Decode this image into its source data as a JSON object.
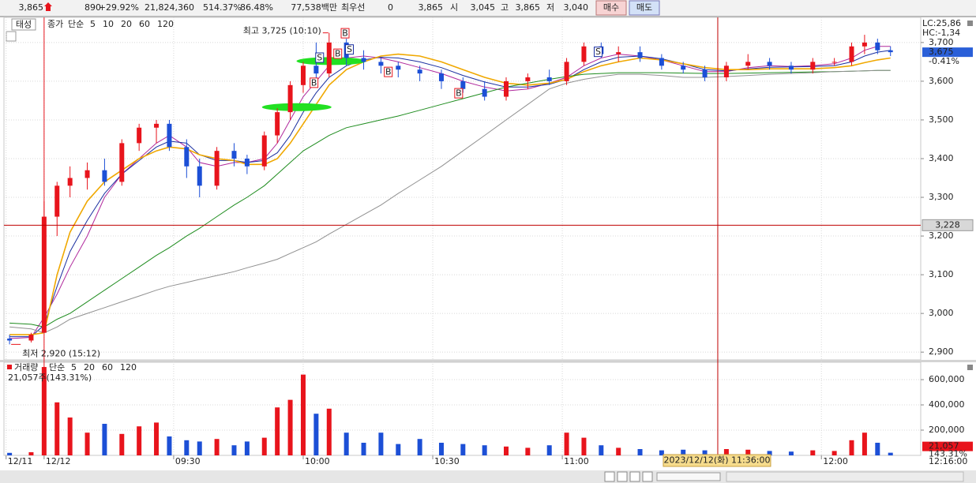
{
  "top": {
    "price": "3,865",
    "change": "890",
    "change_pct": "+29.92%",
    "volume": "21,824,360",
    "vol_ratio": "514.37%",
    "turnover_ratio": "86.48%",
    "amount": "77,538백만",
    "best_label": "최우선",
    "best_value": "0",
    "quote": "3,865",
    "open_label": "시",
    "open": "3,045",
    "high_label": "고",
    "high": "3,865",
    "low_label": "저",
    "low": "3,040",
    "buy": "매수",
    "sell": "매도"
  },
  "chart_data": [
    {
      "type": "candlestick",
      "name": "태성",
      "legend_prefix": "종가",
      "ma_label": "단순",
      "up_color": "#e8141c",
      "down_color": "#1c4fd6",
      "x": [
        -8,
        -3,
        0,
        3,
        6,
        10,
        14,
        18,
        22,
        26,
        29,
        33,
        36,
        40,
        44,
        47,
        51,
        54,
        57,
        60,
        63,
        66,
        70,
        74,
        78,
        82,
        87,
        92,
        97,
        102,
        107,
        112,
        117,
        121,
        125,
        129,
        133,
        138,
        143,
        148,
        153,
        158,
        163,
        168,
        173,
        178,
        183,
        187,
        190,
        193,
        196
      ],
      "open": [
        2935,
        2930,
        2950,
        3250,
        3330,
        3350,
        3370,
        3340,
        3440,
        3480,
        3490,
        3430,
        3380,
        3330,
        3420,
        3400,
        3380,
        3460,
        3520,
        3590,
        3640,
        3620,
        3700,
        3660,
        3650,
        3640,
        3630,
        3620,
        3600,
        3580,
        3560,
        3600,
        3610,
        3600,
        3650,
        3690,
        3670,
        3675,
        3660,
        3640,
        3630,
        3610,
        3640,
        3650,
        3640,
        3630,
        3650,
        3650,
        3690,
        3700,
        3680
      ],
      "high": [
        2945,
        2950,
        3290,
        3340,
        3380,
        3390,
        3400,
        3450,
        3490,
        3500,
        3500,
        3450,
        3400,
        3430,
        3440,
        3410,
        3470,
        3530,
        3600,
        3650,
        3700,
        3725,
        3710,
        3680,
        3660,
        3650,
        3640,
        3630,
        3610,
        3600,
        3610,
        3620,
        3630,
        3660,
        3700,
        3700,
        3690,
        3690,
        3670,
        3650,
        3640,
        3650,
        3670,
        3660,
        3650,
        3660,
        3660,
        3700,
        3720,
        3710,
        3690
      ],
      "low": [
        2920,
        2925,
        2950,
        3200,
        3300,
        3320,
        3330,
        3330,
        3420,
        3440,
        3420,
        3350,
        3300,
        3320,
        3380,
        3360,
        3370,
        3440,
        3500,
        3570,
        3600,
        3610,
        3640,
        3630,
        3620,
        3610,
        3600,
        3580,
        3570,
        3550,
        3550,
        3580,
        3590,
        3590,
        3640,
        3660,
        3650,
        3650,
        3630,
        3620,
        3600,
        3600,
        3630,
        3630,
        3620,
        3620,
        3640,
        3640,
        3670,
        3670,
        3665
      ],
      "close": [
        2930,
        2945,
        3250,
        3330,
        3350,
        3370,
        3340,
        3440,
        3480,
        3490,
        3430,
        3380,
        3330,
        3420,
        3400,
        3380,
        3460,
        3520,
        3590,
        3640,
        3620,
        3700,
        3660,
        3650,
        3640,
        3630,
        3620,
        3600,
        3580,
        3560,
        3600,
        3610,
        3600,
        3650,
        3690,
        3670,
        3675,
        3660,
        3640,
        3630,
        3610,
        3640,
        3650,
        3640,
        3630,
        3650,
        3650,
        3690,
        3700,
        3680,
        3675
      ],
      "series": [
        {
          "name": "5",
          "color": "#b0289c",
          "values": [
            2935,
            2938,
            2990,
            3050,
            3120,
            3200,
            3300,
            3360,
            3400,
            3440,
            3460,
            3430,
            3390,
            3380,
            3390,
            3390,
            3400,
            3440,
            3500,
            3560,
            3600,
            3640,
            3660,
            3665,
            3660,
            3650,
            3635,
            3620,
            3600,
            3585,
            3575,
            3580,
            3595,
            3610,
            3640,
            3660,
            3670,
            3665,
            3655,
            3640,
            3625,
            3625,
            3635,
            3640,
            3638,
            3640,
            3645,
            3660,
            3680,
            3690,
            3690
          ]
        },
        {
          "name": "10",
          "color": "#1a2fa0",
          "values": [
            2940,
            2940,
            2970,
            3070,
            3160,
            3240,
            3310,
            3360,
            3395,
            3430,
            3445,
            3440,
            3410,
            3395,
            3395,
            3390,
            3395,
            3415,
            3460,
            3520,
            3570,
            3610,
            3640,
            3655,
            3662,
            3660,
            3650,
            3635,
            3615,
            3598,
            3585,
            3585,
            3592,
            3605,
            3630,
            3650,
            3662,
            3665,
            3658,
            3645,
            3630,
            3627,
            3632,
            3636,
            3637,
            3638,
            3640,
            3650,
            3665,
            3675,
            3680
          ]
        },
        {
          "name": "20",
          "color": "#f0a800",
          "values": [
            2945,
            2945,
            2950,
            3100,
            3210,
            3290,
            3340,
            3370,
            3400,
            3420,
            3430,
            3425,
            3410,
            3400,
            3395,
            3385,
            3385,
            3400,
            3440,
            3490,
            3540,
            3590,
            3630,
            3650,
            3665,
            3670,
            3665,
            3650,
            3630,
            3610,
            3595,
            3590,
            3595,
            3605,
            3625,
            3640,
            3650,
            3660,
            3655,
            3645,
            3635,
            3630,
            3630,
            3632,
            3632,
            3632,
            3635,
            3640,
            3648,
            3655,
            3660
          ]
        },
        {
          "name": "60",
          "color": "#1e8c1e",
          "values": [
            2975,
            2972,
            2965,
            2985,
            3000,
            3030,
            3060,
            3090,
            3120,
            3150,
            3170,
            3200,
            3220,
            3250,
            3280,
            3300,
            3330,
            3360,
            3390,
            3420,
            3440,
            3460,
            3480,
            3490,
            3500,
            3510,
            3525,
            3540,
            3555,
            3570,
            3585,
            3595,
            3605,
            3612,
            3618,
            3620,
            3622,
            3622,
            3622,
            3621,
            3620,
            3620,
            3621,
            3622,
            3623,
            3624,
            3625,
            3626,
            3627,
            3628,
            3628
          ]
        },
        {
          "name": "120",
          "color": "#909090",
          "values": [
            2965,
            2960,
            2950,
            2965,
            2985,
            3000,
            3015,
            3030,
            3045,
            3060,
            3070,
            3080,
            3088,
            3098,
            3108,
            3118,
            3130,
            3140,
            3155,
            3170,
            3185,
            3205,
            3230,
            3255,
            3280,
            3310,
            3345,
            3380,
            3420,
            3460,
            3500,
            3540,
            3580,
            3595,
            3605,
            3612,
            3618,
            3618,
            3615,
            3610,
            3610,
            3612,
            3615,
            3618,
            3620,
            3622,
            3625,
            3626,
            3627,
            3628,
            3628
          ]
        }
      ],
      "xlim": [
        -9.3,
        203
      ],
      "xticks": [
        {
          "value": -8.8,
          "label": "12/11"
        },
        {
          "value": 0,
          "label": "12/12"
        },
        {
          "value": 30,
          "label": "09:30"
        },
        {
          "value": 60,
          "label": "10:00"
        },
        {
          "value": 90,
          "label": "10:30"
        },
        {
          "value": 120,
          "label": "11:00"
        },
        {
          "value": 180,
          "label": "12:00"
        }
      ],
      "end_time": "12:16:00",
      "day_break": 0,
      "ylim": [
        2882,
        3765
      ],
      "yticks": [
        {
          "value": 2900,
          "label": "2,900"
        },
        {
          "value": 3000,
          "label": "3,000"
        },
        {
          "value": 3100,
          "label": "3,100"
        },
        {
          "value": 3200,
          "label": "3,200"
        },
        {
          "value": 3300,
          "label": "3,300"
        },
        {
          "value": 3400,
          "label": "3,400"
        },
        {
          "value": 3500,
          "label": "3,500"
        },
        {
          "value": 3600,
          "label": "3,600"
        },
        {
          "value": 3700,
          "label": "3,700"
        }
      ],
      "grid": true,
      "annotations": [
        {
          "text": "최고 3,725 (10:10)",
          "x": 66,
          "y": 3725
        },
        {
          "text": "최저 2,920 (15:12)",
          "x": -8,
          "y": 2920
        }
      ],
      "signals": [
        {
          "label": "S",
          "x": 63.8,
          "y": 3661
        },
        {
          "label": "S",
          "x": 70.7,
          "y": 3682
        },
        {
          "label": "S",
          "x": 128.3,
          "y": 3676
        },
        {
          "label": "B",
          "x": 62.5,
          "y": 3596
        },
        {
          "label": "B",
          "x": 68,
          "y": 3671
        },
        {
          "label": "B",
          "x": 69.7,
          "y": 3724
        },
        {
          "label": "B",
          "x": 79.7,
          "y": 3624
        },
        {
          "label": "B",
          "x": 96,
          "y": 3569
        }
      ],
      "highlights": [
        {
          "x": 66.5,
          "y": 3652
        },
        {
          "x": 58.5,
          "y": 3533
        }
      ],
      "lc": "LC:25,86",
      "hc": "HC:-1,34",
      "last_price": {
        "value": 3675,
        "label": "3,675"
      },
      "last_change": "-0.41%",
      "crosshair": {
        "x": 156,
        "x_label": "2023/12/12(화) 11:36:00",
        "y": 3228,
        "y_label": "3,228"
      }
    },
    {
      "type": "bar",
      "title": "거래량",
      "ma_label": "단순",
      "ma_legend": [
        {
          "name": "5",
          "color": "#b0289c"
        },
        {
          "name": "20",
          "color": "#f0a800"
        },
        {
          "name": "60",
          "color": "#1e8c1e"
        },
        {
          "name": "120",
          "color": "#909090"
        }
      ],
      "summary": "21,057주(143.31%)",
      "x": [
        -8,
        -3,
        0,
        3,
        6,
        10,
        14,
        18,
        22,
        26,
        29,
        33,
        36,
        40,
        44,
        47,
        51,
        54,
        57,
        60,
        63,
        66,
        70,
        74,
        78,
        82,
        87,
        92,
        97,
        102,
        107,
        112,
        117,
        121,
        125,
        129,
        133,
        138,
        143,
        148,
        153,
        158,
        163,
        168,
        173,
        178,
        183,
        187,
        190,
        193,
        196
      ],
      "values": [
        20000,
        25000,
        700000,
        420000,
        300000,
        180000,
        250000,
        170000,
        230000,
        260000,
        150000,
        120000,
        110000,
        130000,
        80000,
        110000,
        140000,
        380000,
        440000,
        640000,
        330000,
        370000,
        180000,
        100000,
        180000,
        90000,
        130000,
        100000,
        90000,
        80000,
        70000,
        60000,
        80000,
        180000,
        140000,
        80000,
        60000,
        50000,
        40000,
        45000,
        40000,
        50000,
        45000,
        35000,
        30000,
        40000,
        35000,
        120000,
        180000,
        100000,
        21057
      ],
      "ylim": [
        0,
        744000
      ],
      "yticks": [
        {
          "value": 200000,
          "label": "200,000"
        },
        {
          "value": 400000,
          "label": "400,000"
        },
        {
          "value": 600000,
          "label": "600,000"
        }
      ],
      "last_value": {
        "value": 21057,
        "label": "21,057"
      },
      "last_ratio": "143.31%"
    }
  ]
}
